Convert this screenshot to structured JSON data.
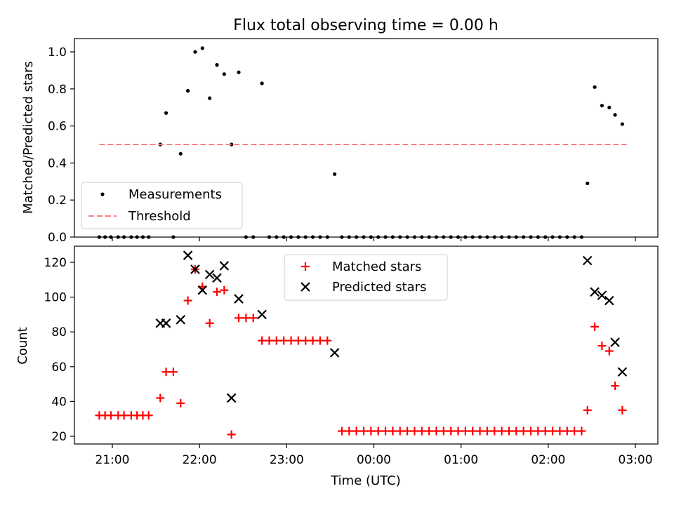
{
  "chart_data": [
    {
      "type": "scatter",
      "title": "Flux total observing time = 0.00 h",
      "ylabel": "Matched/Predicted stars",
      "xlabel": "",
      "ylim": [
        0,
        1.07
      ],
      "grid": false,
      "legend_position": "lower-left",
      "x_tick_labels": [
        "21:00",
        "22:00",
        "23:00",
        "00:00",
        "01:00",
        "02:00",
        "03:00"
      ],
      "y_tick_labels": [
        "0.0",
        "0.2",
        "0.4",
        "0.6",
        "0.8",
        "1.0"
      ],
      "series": [
        {
          "name": "Measurements",
          "marker": "dot",
          "color": "#000000",
          "points": [
            [
              "20:51",
              0.0
            ],
            [
              "20:55",
              0.0
            ],
            [
              "20:59",
              0.0
            ],
            [
              "21:04",
              0.0
            ],
            [
              "21:08",
              0.0
            ],
            [
              "21:13",
              0.0
            ],
            [
              "21:17",
              0.0
            ],
            [
              "21:21",
              0.0
            ],
            [
              "21:25",
              0.0
            ],
            [
              "21:33",
              0.5
            ],
            [
              "21:37",
              0.67
            ],
            [
              "21:42",
              0.0
            ],
            [
              "21:47",
              0.45
            ],
            [
              "21:52",
              0.79
            ],
            [
              "21:57",
              1.0
            ],
            [
              "22:02",
              1.02
            ],
            [
              "22:07",
              0.75
            ],
            [
              "22:12",
              0.93
            ],
            [
              "22:17",
              0.88
            ],
            [
              "22:22",
              0.5
            ],
            [
              "22:27",
              0.89
            ],
            [
              "22:32",
              0.0
            ],
            [
              "22:37",
              0.0
            ],
            [
              "22:43",
              0.83
            ],
            [
              "22:48",
              0.0
            ],
            [
              "22:53",
              0.0
            ],
            [
              "22:58",
              0.0
            ],
            [
              "23:03",
              0.0
            ],
            [
              "23:08",
              0.0
            ],
            [
              "23:13",
              0.0
            ],
            [
              "23:18",
              0.0
            ],
            [
              "23:23",
              0.0
            ],
            [
              "23:28",
              0.0
            ],
            [
              "23:33",
              0.34
            ],
            [
              "23:38",
              0.0
            ],
            [
              "23:43",
              0.0
            ],
            [
              "23:48",
              0.0
            ],
            [
              "23:53",
              0.0
            ],
            [
              "23:58",
              0.0
            ],
            [
              "00:03",
              0.0
            ],
            [
              "00:08",
              0.0
            ],
            [
              "00:13",
              0.0
            ],
            [
              "00:18",
              0.0
            ],
            [
              "00:23",
              0.0
            ],
            [
              "00:28",
              0.0
            ],
            [
              "00:33",
              0.0
            ],
            [
              "00:38",
              0.0
            ],
            [
              "00:43",
              0.0
            ],
            [
              "00:48",
              0.0
            ],
            [
              "00:53",
              0.0
            ],
            [
              "00:58",
              0.0
            ],
            [
              "01:03",
              0.0
            ],
            [
              "01:08",
              0.0
            ],
            [
              "01:13",
              0.0
            ],
            [
              "01:18",
              0.0
            ],
            [
              "01:23",
              0.0
            ],
            [
              "01:28",
              0.0
            ],
            [
              "01:33",
              0.0
            ],
            [
              "01:38",
              0.0
            ],
            [
              "01:43",
              0.0
            ],
            [
              "01:48",
              0.0
            ],
            [
              "01:53",
              0.0
            ],
            [
              "01:58",
              0.0
            ],
            [
              "02:03",
              0.0
            ],
            [
              "02:08",
              0.0
            ],
            [
              "02:13",
              0.0
            ],
            [
              "02:18",
              0.0
            ],
            [
              "02:23",
              0.0
            ],
            [
              "02:27",
              0.29
            ],
            [
              "02:32",
              0.81
            ],
            [
              "02:37",
              0.71
            ],
            [
              "02:42",
              0.7
            ],
            [
              "02:46",
              0.66
            ],
            [
              "02:51",
              0.61
            ]
          ]
        },
        {
          "name": "Threshold",
          "style": "dashed-line",
          "color": "#ff7f7f",
          "points": [
            [
              "20:51",
              0.5
            ],
            [
              "02:54",
              0.5
            ]
          ]
        }
      ]
    },
    {
      "type": "scatter",
      "title": "",
      "xlabel": "Time (UTC)",
      "ylabel": "Count",
      "ylim": [
        16,
        130
      ],
      "grid": false,
      "legend_position": "upper-center",
      "x_tick_labels": [
        "21:00",
        "22:00",
        "23:00",
        "00:00",
        "01:00",
        "02:00",
        "03:00"
      ],
      "y_tick_labels": [
        "20",
        "40",
        "60",
        "80",
        "100",
        "120"
      ],
      "series": [
        {
          "name": "Matched stars",
          "marker": "plus",
          "color": "#ff0000",
          "points": [
            [
              "20:51",
              32
            ],
            [
              "20:55",
              32
            ],
            [
              "20:59",
              32
            ],
            [
              "21:04",
              32
            ],
            [
              "21:08",
              32
            ],
            [
              "21:13",
              32
            ],
            [
              "21:17",
              32
            ],
            [
              "21:21",
              32
            ],
            [
              "21:25",
              32
            ],
            [
              "21:33",
              42
            ],
            [
              "21:37",
              57
            ],
            [
              "21:42",
              57
            ],
            [
              "21:47",
              39
            ],
            [
              "21:52",
              98
            ],
            [
              "21:57",
              116
            ],
            [
              "22:02",
              106
            ],
            [
              "22:07",
              85
            ],
            [
              "22:12",
              103
            ],
            [
              "22:17",
              104
            ],
            [
              "22:22",
              21
            ],
            [
              "22:27",
              88
            ],
            [
              "22:32",
              88
            ],
            [
              "22:37",
              88
            ],
            [
              "22:43",
              75
            ],
            [
              "22:48",
              75
            ],
            [
              "22:53",
              75
            ],
            [
              "22:58",
              75
            ],
            [
              "23:03",
              75
            ],
            [
              "23:08",
              75
            ],
            [
              "23:13",
              75
            ],
            [
              "23:18",
              75
            ],
            [
              "23:23",
              75
            ],
            [
              "23:28",
              75
            ],
            [
              "23:38",
              23
            ],
            [
              "23:43",
              23
            ],
            [
              "23:48",
              23
            ],
            [
              "23:53",
              23
            ],
            [
              "23:58",
              23
            ],
            [
              "00:03",
              23
            ],
            [
              "00:08",
              23
            ],
            [
              "00:13",
              23
            ],
            [
              "00:18",
              23
            ],
            [
              "00:23",
              23
            ],
            [
              "00:28",
              23
            ],
            [
              "00:33",
              23
            ],
            [
              "00:38",
              23
            ],
            [
              "00:43",
              23
            ],
            [
              "00:48",
              23
            ],
            [
              "00:53",
              23
            ],
            [
              "00:58",
              23
            ],
            [
              "01:03",
              23
            ],
            [
              "01:08",
              23
            ],
            [
              "01:13",
              23
            ],
            [
              "01:18",
              23
            ],
            [
              "01:23",
              23
            ],
            [
              "01:28",
              23
            ],
            [
              "01:33",
              23
            ],
            [
              "01:38",
              23
            ],
            [
              "01:43",
              23
            ],
            [
              "01:48",
              23
            ],
            [
              "01:53",
              23
            ],
            [
              "01:58",
              23
            ],
            [
              "02:03",
              23
            ],
            [
              "02:08",
              23
            ],
            [
              "02:13",
              23
            ],
            [
              "02:18",
              23
            ],
            [
              "02:23",
              23
            ],
            [
              "02:27",
              35
            ],
            [
              "02:32",
              83
            ],
            [
              "02:37",
              72
            ],
            [
              "02:42",
              69
            ],
            [
              "02:46",
              49
            ],
            [
              "02:51",
              35
            ]
          ]
        },
        {
          "name": "Predicted stars",
          "marker": "x",
          "color": "#000000",
          "points": [
            [
              "21:33",
              85
            ],
            [
              "21:37",
              85
            ],
            [
              "21:47",
              87
            ],
            [
              "21:52",
              124
            ],
            [
              "21:57",
              116
            ],
            [
              "22:02",
              104
            ],
            [
              "22:07",
              113
            ],
            [
              "22:12",
              111
            ],
            [
              "22:17",
              118
            ],
            [
              "22:22",
              42
            ],
            [
              "22:27",
              99
            ],
            [
              "22:43",
              90
            ],
            [
              "23:33",
              68
            ],
            [
              "02:27",
              121
            ],
            [
              "02:32",
              103
            ],
            [
              "02:37",
              101
            ],
            [
              "02:42",
              98
            ],
            [
              "02:46",
              74
            ],
            [
              "02:51",
              57
            ]
          ]
        }
      ]
    }
  ]
}
